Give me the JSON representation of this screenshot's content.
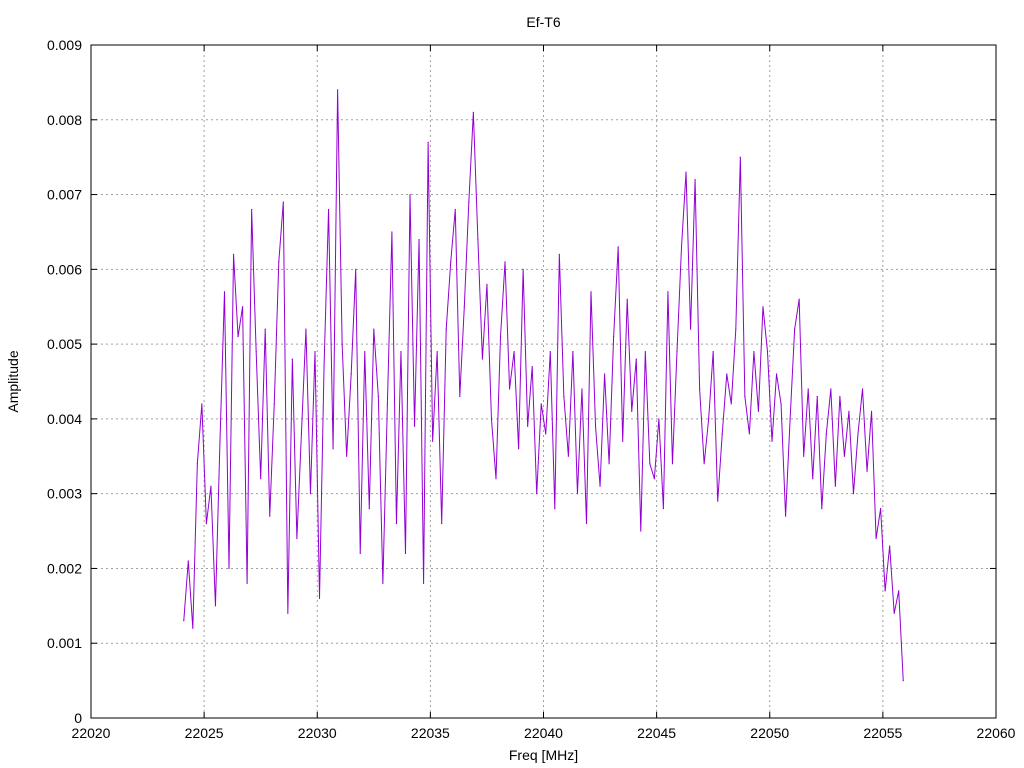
{
  "chart_data": {
    "type": "line",
    "title": "Ef-T6",
    "xlabel": "Freq [MHz]",
    "ylabel": "Amplitude",
    "xlim": [
      22020,
      22060
    ],
    "ylim": [
      0,
      0.009
    ],
    "xticks": [
      22020,
      22025,
      22030,
      22035,
      22040,
      22045,
      22050,
      22055,
      22060
    ],
    "yticks": [
      0,
      0.001,
      0.002,
      0.003,
      0.004,
      0.005,
      0.006,
      0.007,
      0.008,
      0.009
    ],
    "xtick_labels": [
      "22020",
      "22025",
      "22030",
      "22035",
      "22040",
      "22045",
      "22050",
      "22055",
      "22060"
    ],
    "ytick_labels": [
      "0",
      "0.001",
      "0.002",
      "0.003",
      "0.004",
      "0.005",
      "0.006",
      "0.007",
      "0.008",
      "0.009"
    ],
    "grid": true,
    "legend": "none",
    "series": [
      {
        "color": "#9400d3",
        "x": [
          22024.1,
          22024.3,
          22024.5,
          22024.7,
          22024.9,
          22025.1,
          22025.3,
          22025.5,
          22025.7,
          22025.9,
          22026.1,
          22026.3,
          22026.5,
          22026.7,
          22026.9,
          22027.1,
          22027.3,
          22027.5,
          22027.7,
          22027.9,
          22028.1,
          22028.3,
          22028.5,
          22028.7,
          22028.9,
          22029.1,
          22029.3,
          22029.5,
          22029.7,
          22029.9,
          22030.1,
          22030.3,
          22030.5,
          22030.7,
          22030.9,
          22031.1,
          22031.3,
          22031.5,
          22031.7,
          22031.9,
          22032.1,
          22032.3,
          22032.5,
          22032.7,
          22032.9,
          22033.1,
          22033.3,
          22033.5,
          22033.7,
          22033.9,
          22034.1,
          22034.3,
          22034.5,
          22034.7,
          22034.9,
          22035.1,
          22035.3,
          22035.5,
          22035.7,
          22035.9,
          22036.1,
          22036.3,
          22036.5,
          22036.7,
          22036.9,
          22037.1,
          22037.3,
          22037.5,
          22037.7,
          22037.9,
          22038.1,
          22038.3,
          22038.5,
          22038.7,
          22038.9,
          22039.1,
          22039.3,
          22039.5,
          22039.7,
          22039.9,
          22040.1,
          22040.3,
          22040.5,
          22040.7,
          22040.9,
          22041.1,
          22041.3,
          22041.5,
          22041.7,
          22041.9,
          22042.1,
          22042.3,
          22042.5,
          22042.7,
          22042.9,
          22043.1,
          22043.3,
          22043.5,
          22043.7,
          22043.9,
          22044.1,
          22044.3,
          22044.5,
          22044.7,
          22044.9,
          22045.1,
          22045.3,
          22045.5,
          22045.7,
          22045.9,
          22046.1,
          22046.3,
          22046.5,
          22046.7,
          22046.9,
          22047.1,
          22047.3,
          22047.5,
          22047.7,
          22047.9,
          22048.1,
          22048.3,
          22048.5,
          22048.7,
          22048.9,
          22049.1,
          22049.3,
          22049.5,
          22049.7,
          22049.9,
          22050.1,
          22050.3,
          22050.5,
          22050.7,
          22050.9,
          22051.1,
          22051.3,
          22051.5,
          22051.7,
          22051.9,
          22052.1,
          22052.3,
          22052.5,
          22052.7,
          22052.9,
          22053.1,
          22053.3,
          22053.5,
          22053.7,
          22053.9,
          22054.1,
          22054.3,
          22054.5,
          22054.7,
          22054.9,
          22055.1,
          22055.3,
          22055.5,
          22055.7,
          22055.9
        ],
        "y": [
          0.0013,
          0.0021,
          0.0012,
          0.0034,
          0.0042,
          0.0026,
          0.0031,
          0.0015,
          0.0037,
          0.0057,
          0.002,
          0.0062,
          0.0051,
          0.0055,
          0.0018,
          0.0068,
          0.0049,
          0.0032,
          0.0052,
          0.0027,
          0.0042,
          0.0061,
          0.0069,
          0.0014,
          0.0048,
          0.0024,
          0.0038,
          0.0052,
          0.003,
          0.0049,
          0.0016,
          0.0047,
          0.0068,
          0.0036,
          0.0084,
          0.005,
          0.0035,
          0.0046,
          0.006,
          0.0022,
          0.0049,
          0.0028,
          0.0052,
          0.0043,
          0.0018,
          0.0042,
          0.0065,
          0.0026,
          0.0049,
          0.0022,
          0.007,
          0.0039,
          0.0064,
          0.0018,
          0.0077,
          0.0037,
          0.0049,
          0.0026,
          0.0052,
          0.0061,
          0.0068,
          0.0043,
          0.0055,
          0.0069,
          0.0081,
          0.0064,
          0.0048,
          0.0058,
          0.004,
          0.0032,
          0.0051,
          0.0061,
          0.0044,
          0.0049,
          0.0036,
          0.006,
          0.0039,
          0.0047,
          0.003,
          0.0042,
          0.0038,
          0.0049,
          0.0028,
          0.0062,
          0.0043,
          0.0035,
          0.0049,
          0.003,
          0.0044,
          0.0026,
          0.0057,
          0.0039,
          0.0031,
          0.0046,
          0.0034,
          0.0051,
          0.0063,
          0.0037,
          0.0056,
          0.0041,
          0.0048,
          0.0025,
          0.0049,
          0.0034,
          0.0032,
          0.004,
          0.0028,
          0.0057,
          0.0034,
          0.0049,
          0.0063,
          0.0073,
          0.0052,
          0.0072,
          0.0044,
          0.0034,
          0.004,
          0.0049,
          0.0029,
          0.0038,
          0.0046,
          0.0042,
          0.0052,
          0.0075,
          0.0043,
          0.0038,
          0.0049,
          0.0041,
          0.0055,
          0.0049,
          0.0037,
          0.0046,
          0.0042,
          0.0027,
          0.004,
          0.0052,
          0.0056,
          0.0035,
          0.0044,
          0.0032,
          0.0043,
          0.0028,
          0.0038,
          0.0044,
          0.0031,
          0.0043,
          0.0035,
          0.0041,
          0.003,
          0.0038,
          0.0044,
          0.0033,
          0.0041,
          0.0024,
          0.0028,
          0.0017,
          0.0023,
          0.0014,
          0.0017,
          0.0005
        ]
      }
    ]
  }
}
